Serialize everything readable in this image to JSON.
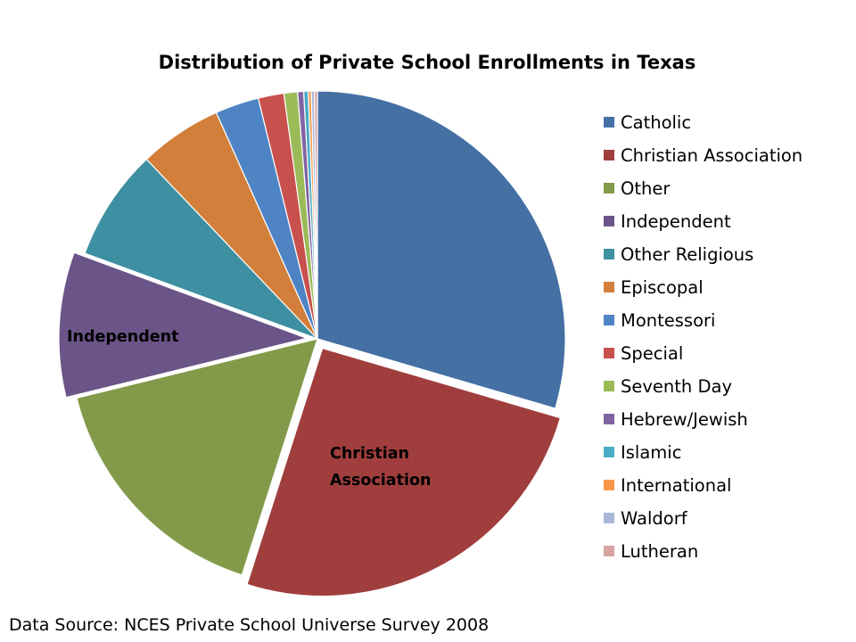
{
  "chart_data": {
    "type": "pie",
    "title": "Distribution of Private School Enrollments in Texas",
    "source": "Data Source: NCES Private School Universe Survey 2008",
    "legend_position": "right",
    "series": [
      {
        "name": "Catholic",
        "value": 30.0,
        "color": "#4470A4",
        "exploded": false,
        "label": ""
      },
      {
        "name": "Christian Association",
        "value": 25.8,
        "color": "#A03E3E",
        "exploded": true,
        "label": "Christian Association"
      },
      {
        "name": "Other",
        "value": 16.5,
        "color": "#829A49",
        "exploded": false,
        "label": ""
      },
      {
        "name": "Independent",
        "value": 9.6,
        "color": "#6B5487",
        "exploded": true,
        "label": "Independent"
      },
      {
        "name": "Other Religious",
        "value": 7.4,
        "color": "#3E8FA2",
        "exploded": false,
        "label": ""
      },
      {
        "name": "Episcopal",
        "value": 5.5,
        "color": "#D17F3A",
        "exploded": false,
        "label": ""
      },
      {
        "name": "Montessori",
        "value": 2.9,
        "color": "#4F84C4",
        "exploded": false,
        "label": ""
      },
      {
        "name": "Special",
        "value": 1.7,
        "color": "#C8504D",
        "exploded": false,
        "label": ""
      },
      {
        "name": "Seventh Day",
        "value": 0.9,
        "color": "#9BBB59",
        "exploded": false,
        "label": ""
      },
      {
        "name": "Hebrew/Jewish",
        "value": 0.4,
        "color": "#8064A2",
        "exploded": false,
        "label": ""
      },
      {
        "name": "Islamic",
        "value": 0.3,
        "color": "#4BACC6",
        "exploded": false,
        "label": ""
      },
      {
        "name": "International",
        "value": 0.2,
        "color": "#F79646",
        "exploded": false,
        "label": ""
      },
      {
        "name": "Waldorf",
        "value": 0.2,
        "color": "#A9B8D8",
        "exploded": false,
        "label": ""
      },
      {
        "name": "Lutheran",
        "value": 0.2,
        "color": "#D9A3A2",
        "exploded": false,
        "label": ""
      }
    ]
  }
}
